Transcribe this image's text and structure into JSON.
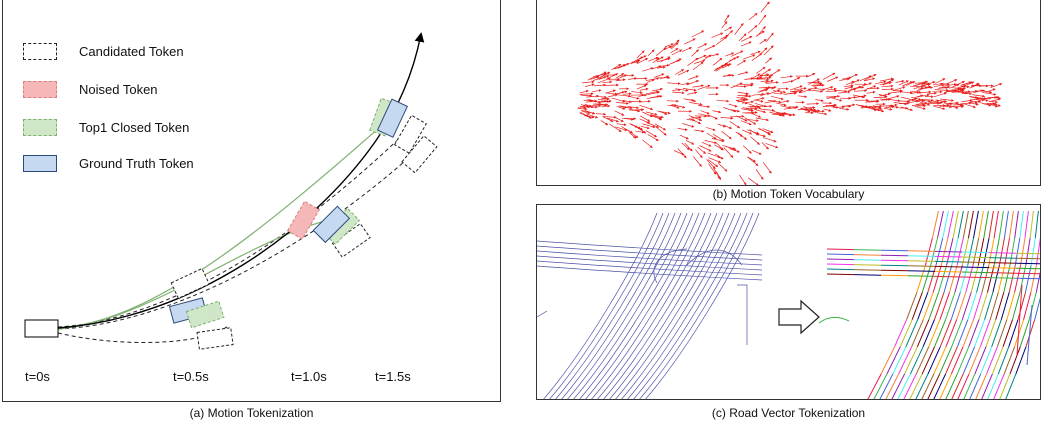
{
  "panel_a": {
    "caption": "(a) Motion Tokenization",
    "legend": [
      {
        "label": "Candidated Token",
        "fill": "#ffffff",
        "stroke": "#222222"
      },
      {
        "label": "Noised Token",
        "fill": "#f5b7b7",
        "stroke": "#d98080"
      },
      {
        "label": "Top1 Closed Token",
        "fill": "#cfe6c7",
        "stroke": "#7fb070"
      },
      {
        "label": "Ground Truth Token",
        "fill": "#c5d9f1",
        "stroke": "#2d4a7a"
      }
    ],
    "time_labels": [
      "t=0s",
      "t=0.5s",
      "t=1.0s",
      "t=1.5s"
    ],
    "colors": {
      "ground_truth_path": "#000000",
      "closed_path": "#7fb070",
      "candidate_path": "#222222"
    }
  },
  "panel_b": {
    "caption": "(b) Motion Token Vocabulary",
    "arrow_color": "#e8201e"
  },
  "panel_c": {
    "caption": "(c) Road Vector Tokenization",
    "raw_color": "#4a50a8",
    "arrow_icon": "hollow-right-arrow-icon"
  }
}
